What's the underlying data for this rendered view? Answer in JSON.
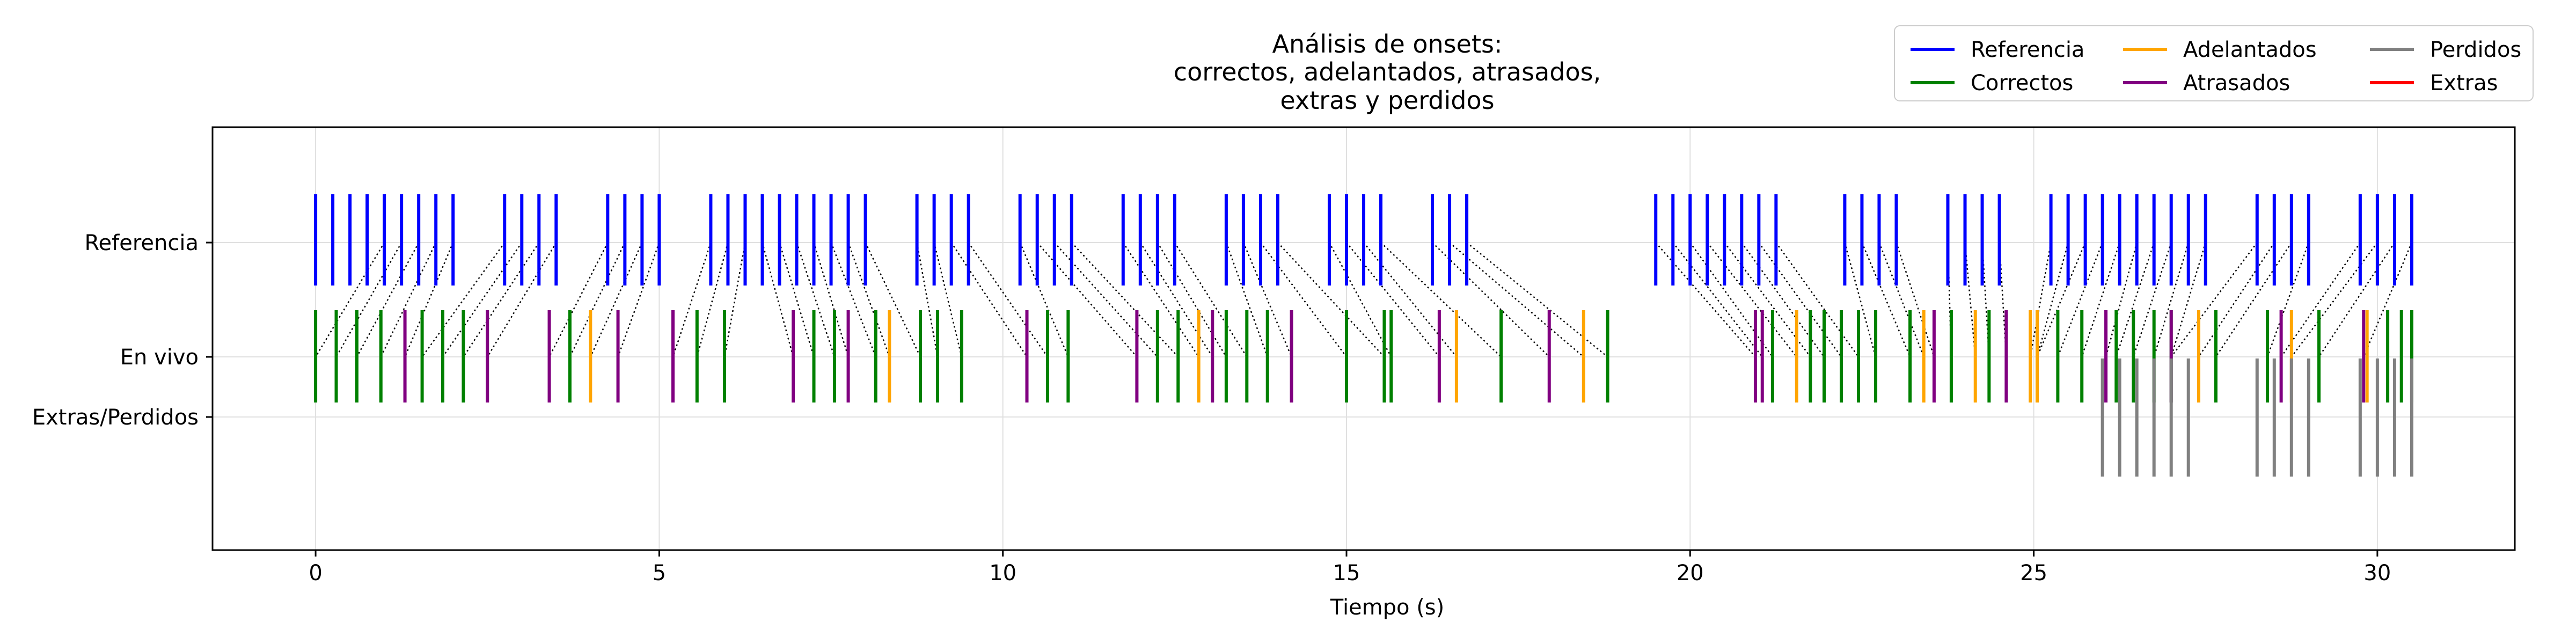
{
  "chart_data": {
    "type": "event_plot",
    "title_lines": [
      "Análisis de onsets:",
      "correctos, adelantados, atrasados,",
      "extras y perdidos"
    ],
    "xlabel": "Tiempo (s)",
    "xlim": [
      -1.5,
      32.0
    ],
    "xticks": [
      0,
      5,
      10,
      15,
      20,
      25,
      30
    ],
    "y_categories": [
      "Referencia",
      "En vivo",
      "Extras/Perdidos"
    ],
    "grid": true,
    "legend": {
      "position": "top-right",
      "columns": 3,
      "entries": [
        {
          "key": "referencia",
          "label": "Referencia",
          "color": "#0000ff"
        },
        {
          "key": "correctos",
          "label": "Correctos",
          "color": "#008000"
        },
        {
          "key": "adelantados",
          "label": "Adelantados",
          "color": "#ffa500"
        },
        {
          "key": "atrasados",
          "label": "Atrasados",
          "color": "#800080"
        },
        {
          "key": "perdidos",
          "label": "Perdidos",
          "color": "#808080"
        },
        {
          "key": "extras",
          "label": "Extras",
          "color": "#ff0000"
        }
      ]
    },
    "colors": {
      "referencia": "#0000ff",
      "correctos": "#008000",
      "adelantados": "#ffa500",
      "atrasados": "#800080",
      "perdidos": "#808080",
      "extras": "#ff0000",
      "connector": "#000000"
    },
    "series": {
      "referencia": [
        0.0,
        0.25,
        0.5,
        0.75,
        1.0,
        1.25,
        1.5,
        1.75,
        2.0,
        2.75,
        3.0,
        3.25,
        3.5,
        4.25,
        4.5,
        4.75,
        5.0,
        5.75,
        6.0,
        6.25,
        6.5,
        6.75,
        7.0,
        7.25,
        7.5,
        7.75,
        8.0,
        8.75,
        9.0,
        9.25,
        9.5,
        10.25,
        10.5,
        10.75,
        11.0,
        11.75,
        12.0,
        12.25,
        12.5,
        13.25,
        13.5,
        13.75,
        14.0,
        14.75,
        15.0,
        15.25,
        15.5,
        16.25,
        16.5,
        16.75,
        19.5,
        19.75,
        20.0,
        20.25,
        20.5,
        20.75,
        21.0,
        21.25,
        22.25,
        22.5,
        22.75,
        23.0,
        23.75,
        24.0,
        24.25,
        24.5,
        25.25,
        25.5,
        25.75,
        26.0,
        26.25,
        26.5,
        26.75,
        27.0,
        27.25,
        27.5,
        28.25,
        28.5,
        28.75,
        29.0,
        29.75,
        30.0,
        30.25,
        30.5
      ],
      "correctos": [
        0.0,
        0.3,
        0.6,
        0.95,
        1.55,
        1.85,
        2.15,
        3.7,
        5.55,
        5.95,
        7.25,
        7.55,
        8.15,
        8.8,
        9.05,
        9.4,
        10.65,
        10.95,
        12.25,
        12.55,
        13.25,
        13.55,
        13.85,
        15.0,
        15.55,
        15.65,
        17.25,
        18.8,
        21.2,
        21.75,
        21.95,
        22.2,
        22.45,
        22.7,
        23.2,
        23.8,
        24.35,
        25.05,
        25.35,
        25.7,
        26.2,
        26.45,
        26.75,
        27.0,
        27.65,
        28.4,
        29.15,
        30.15,
        30.35,
        30.5
      ],
      "adelantados": [
        4.0,
        8.35,
        12.85,
        16.6,
        18.45,
        21.55,
        23.4,
        24.15,
        24.95,
        25.05,
        27.4,
        28.75,
        29.85
      ],
      "atrasados": [
        1.3,
        2.5,
        3.4,
        4.4,
        5.2,
        6.95,
        7.75,
        10.35,
        11.95,
        13.05,
        14.2,
        16.35,
        17.95,
        20.95,
        21.05,
        23.55,
        24.6,
        26.05,
        27.0,
        28.6,
        29.8
      ],
      "perdidos": [
        26.0,
        26.25,
        26.5,
        26.75,
        27.0,
        27.25,
        28.25,
        28.5,
        28.75,
        29.0,
        29.75,
        30.0,
        30.25,
        30.5
      ],
      "extras": []
    }
  }
}
